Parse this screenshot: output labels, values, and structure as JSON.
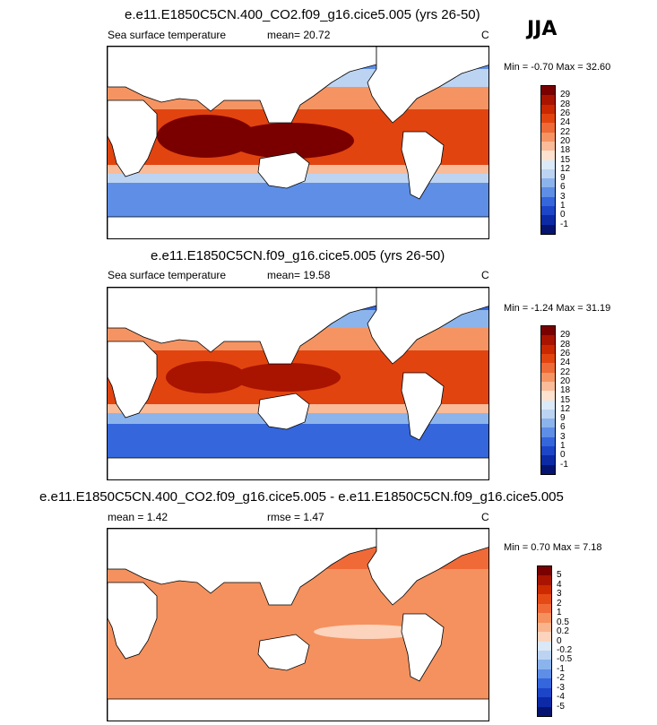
{
  "season": "JJA",
  "panels": [
    {
      "title": "e.e11.E1850C5CN.400_CO2.f09_g16.cice5.005 (yrs 26-50)",
      "left_label": "Sea surface temperature",
      "center_label": "mean=  20.72",
      "unit": "C",
      "min_label": "Min =",
      "min_value": "-0.70",
      "max_label": "Max =",
      "max_value": "32.60",
      "legend_ticks": [
        "29",
        "28",
        "26",
        "24",
        "22",
        "20",
        "18",
        "15",
        "12",
        "9",
        "6",
        "3",
        "1",
        "0",
        "-1"
      ]
    },
    {
      "title": "e.e11.E1850C5CN.f09_g16.cice5.005 (yrs 26-50)",
      "left_label": "Sea surface temperature",
      "center_label": "mean=  19.58",
      "unit": "C",
      "min_label": "Min =",
      "min_value": "-1.24",
      "max_label": "Max =",
      "max_value": "31.19",
      "legend_ticks": [
        "29",
        "28",
        "26",
        "24",
        "22",
        "20",
        "18",
        "15",
        "12",
        "9",
        "6",
        "3",
        "1",
        "0",
        "-1"
      ]
    },
    {
      "title": "e.e11.E1850C5CN.400_CO2.f09_g16.cice5.005 - e.e11.E1850C5CN.f09_g16.cice5.005",
      "left_label": "mean =  1.42",
      "center_label": "rmse =  1.47",
      "unit": "C",
      "min_label": "Min =",
      "min_value": "0.70",
      "max_label": "Max =",
      "max_value": "7.18",
      "legend_ticks": [
        "5",
        "4",
        "3",
        "2",
        "1",
        "0.5",
        "0.2",
        "0",
        "-0.2",
        "-0.5",
        "-1",
        "-2",
        "-3",
        "-4",
        "-5"
      ]
    }
  ],
  "colors": {
    "abs_scale": [
      "#7a0000",
      "#a81400",
      "#c92800",
      "#e24410",
      "#ee6a36",
      "#f59462",
      "#fabb98",
      "#fde2cf",
      "#dbeaf8",
      "#bcd4f2",
      "#8cb4ec",
      "#5e8ee6",
      "#3566dc",
      "#1d45c8",
      "#0c2aa6",
      "#051470"
    ],
    "diff_scale": [
      "#7a0000",
      "#a81400",
      "#cc2a00",
      "#e44a16",
      "#f06a38",
      "#f5915e",
      "#f9b48e",
      "#fcd3bc",
      "#dbe8f8",
      "#bcd4f2",
      "#8cb4ec",
      "#5e8ee6",
      "#3566dc",
      "#1d45c8",
      "#0c2aa6",
      "#051470"
    ],
    "land": "#ffffff",
    "coast": "#000000"
  }
}
